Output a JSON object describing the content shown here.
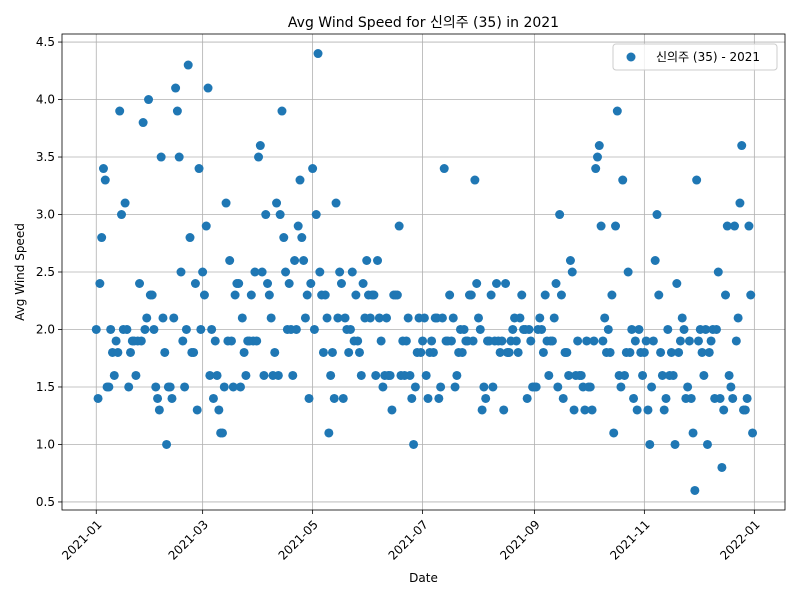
{
  "chart_data": {
    "type": "scatter",
    "title": "Avg Wind Speed for 신의주 (35) in 2021",
    "xlabel": "Date",
    "ylabel": "Avg Wind Speed",
    "grid": true,
    "legend_position": "top-right",
    "color": "#1f77b4",
    "xlim": [
      "2020-12-13",
      "2022-01-18"
    ],
    "ylim": [
      0.43,
      4.57
    ],
    "x_ticks": [
      {
        "date": "2021-01-01",
        "label": "2021-01"
      },
      {
        "date": "2021-03-01",
        "label": "2021-03"
      },
      {
        "date": "2021-05-01",
        "label": "2021-05"
      },
      {
        "date": "2021-07-01",
        "label": "2021-07"
      },
      {
        "date": "2021-09-01",
        "label": "2021-09"
      },
      {
        "date": "2021-11-01",
        "label": "2021-11"
      },
      {
        "date": "2022-01-01",
        "label": "2022-01"
      }
    ],
    "y_ticks": [
      0.5,
      1.0,
      1.5,
      2.0,
      2.5,
      3.0,
      3.5,
      4.0,
      4.5
    ],
    "y_tick_labels": [
      "0.5",
      "1.0",
      "1.5",
      "2.0",
      "2.5",
      "3.0",
      "3.5",
      "4.0",
      "4.5"
    ],
    "series": [
      {
        "name": "신의주 (35) - 2021",
        "start_date": "2021-01-01",
        "values": [
          2.0,
          1.4,
          2.4,
          2.8,
          3.4,
          3.3,
          1.5,
          1.5,
          2.0,
          1.8,
          1.6,
          1.9,
          1.8,
          3.9,
          3.0,
          2.0,
          3.1,
          2.0,
          1.5,
          1.8,
          1.9,
          1.9,
          1.6,
          1.9,
          2.4,
          1.9,
          3.8,
          2.0,
          2.1,
          4.0,
          2.3,
          2.3,
          2.0,
          1.5,
          1.4,
          1.3,
          3.5,
          2.1,
          1.8,
          1.0,
          1.5,
          1.5,
          1.4,
          2.1,
          4.1,
          3.9,
          3.5,
          2.5,
          1.9,
          1.5,
          2.0,
          4.3,
          2.8,
          1.8,
          1.8,
          2.4,
          1.3,
          3.4,
          2.0,
          2.5,
          2.3,
          2.9,
          4.1,
          1.6,
          2.0,
          1.4,
          1.9,
          1.6,
          1.3,
          1.1,
          1.1,
          1.5,
          3.1,
          1.9,
          2.6,
          1.9,
          1.5,
          2.3,
          2.4,
          2.4,
          1.5,
          2.1,
          1.8,
          1.6,
          1.9,
          1.9,
          2.3,
          1.9,
          2.5,
          1.9,
          3.5,
          3.6,
          2.5,
          1.6,
          3.0,
          2.4,
          2.3,
          2.1,
          1.6,
          1.8,
          3.1,
          1.6,
          3.0,
          3.9,
          2.8,
          2.5,
          2.0,
          2.4,
          2.0,
          1.6,
          2.6,
          2.0,
          2.9,
          3.3,
          2.8,
          2.6,
          2.1,
          2.3,
          1.4,
          2.4,
          3.4,
          2.0,
          3.0,
          4.4,
          2.5,
          2.3,
          1.8,
          2.3,
          2.1,
          1.1,
          1.6,
          1.8,
          1.4,
          3.1,
          2.1,
          2.5,
          2.4,
          1.4,
          2.1,
          2.0,
          1.8,
          2.0,
          2.5,
          1.9,
          2.3,
          1.9,
          1.8,
          1.6,
          2.4,
          2.1,
          2.6,
          2.3,
          2.1,
          2.3,
          2.3,
          1.6,
          2.6,
          2.1,
          1.9,
          1.5,
          1.6,
          2.1,
          1.6,
          1.6,
          1.3,
          2.3,
          2.3,
          2.3,
          2.9,
          1.6,
          1.9,
          1.6,
          1.9,
          2.1,
          1.6,
          1.4,
          1.0,
          1.5,
          1.8,
          2.1,
          1.8,
          1.9,
          2.1,
          1.6,
          1.4,
          1.8,
          1.9,
          1.8,
          2.1,
          2.1,
          1.4,
          1.5,
          2.1,
          3.4,
          1.9,
          1.9,
          2.3,
          1.9,
          2.1,
          1.5,
          1.6,
          1.8,
          2.0,
          1.8,
          2.0,
          1.9,
          1.9,
          2.3,
          2.3,
          1.9,
          3.3,
          2.4,
          2.1,
          2.0,
          1.3,
          1.5,
          1.4,
          1.9,
          1.9,
          2.3,
          1.5,
          1.9,
          2.4,
          1.9,
          1.8,
          1.9,
          1.3,
          2.4,
          1.8,
          1.8,
          1.9,
          2.0,
          2.1,
          1.9,
          1.8,
          2.1,
          2.3,
          2.0,
          2.0,
          1.4,
          2.0,
          1.9,
          1.5,
          1.5,
          1.5,
          2.0,
          2.1,
          2.0,
          1.8,
          2.3,
          1.9,
          1.6,
          1.9,
          1.9,
          2.1,
          2.4,
          1.5,
          3.0,
          2.3,
          1.4,
          1.8,
          1.8,
          1.6,
          2.6,
          2.5,
          1.3,
          1.6,
          1.9,
          1.6,
          1.6,
          1.5,
          1.3,
          1.9,
          1.5,
          1.5,
          1.3,
          1.9,
          3.4,
          3.5,
          3.6,
          2.9,
          1.9,
          2.1,
          1.8,
          2.0,
          1.8,
          2.3,
          1.1,
          2.9,
          3.9,
          1.6,
          1.5,
          3.3,
          1.6,
          1.8,
          2.5,
          1.8,
          2.0,
          1.4,
          1.9,
          1.3,
          2.0,
          1.8,
          1.6,
          1.8,
          1.9,
          1.3,
          1.0,
          1.5,
          1.9,
          2.6,
          3.0,
          2.3,
          1.8,
          1.6,
          1.3,
          1.4,
          2.0,
          1.6,
          1.8,
          1.6,
          1.0,
          2.4,
          1.8,
          1.9,
          2.1,
          2.0,
          1.4,
          1.5,
          1.9,
          1.4,
          1.1,
          0.6,
          3.3,
          1.9,
          2.0,
          1.8,
          1.6,
          2.0,
          1.0,
          1.8,
          1.9,
          2.0,
          1.4,
          2.0,
          2.5,
          1.4,
          0.8,
          1.3,
          2.3,
          2.9,
          1.6,
          1.5,
          1.4,
          2.9,
          1.9,
          2.1,
          3.1,
          3.6,
          1.3,
          1.3,
          1.4,
          2.9,
          2.3,
          1.1
        ]
      }
    ]
  }
}
